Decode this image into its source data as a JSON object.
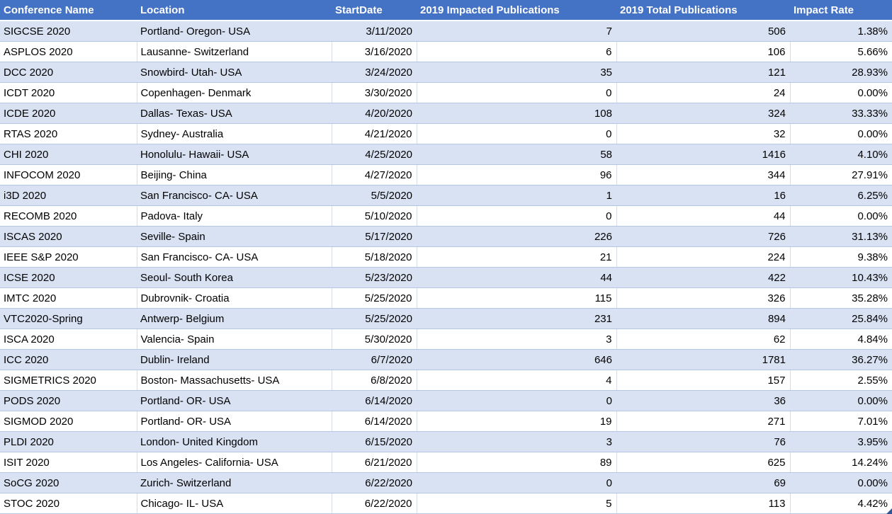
{
  "table": {
    "column_ids": [
      "conference-name",
      "location",
      "start-date",
      "impacted-publications",
      "total-publications",
      "impact-rate"
    ],
    "columns": [
      {
        "label": "Conference Name"
      },
      {
        "label": "Location"
      },
      {
        "label": "StartDate"
      },
      {
        "label": "2019 Impacted Publications"
      },
      {
        "label": "2019 Total Publications"
      },
      {
        "label": "Impact Rate"
      }
    ],
    "rows": [
      [
        "SIGCSE 2020",
        "Portland- Oregon- USA",
        "3/11/2020",
        "7",
        "506",
        "1.38%"
      ],
      [
        "ASPLOS 2020",
        "Lausanne- Switzerland",
        "3/16/2020",
        "6",
        "106",
        "5.66%"
      ],
      [
        "DCC 2020",
        "Snowbird- Utah- USA",
        "3/24/2020",
        "35",
        "121",
        "28.93%"
      ],
      [
        "ICDT 2020",
        "Copenhagen- Denmark",
        "3/30/2020",
        "0",
        "24",
        "0.00%"
      ],
      [
        "ICDE 2020",
        "Dallas- Texas- USA",
        "4/20/2020",
        "108",
        "324",
        "33.33%"
      ],
      [
        "RTAS 2020",
        "Sydney- Australia",
        "4/21/2020",
        "0",
        "32",
        "0.00%"
      ],
      [
        "CHI 2020",
        "Honolulu- Hawaii- USA",
        "4/25/2020",
        "58",
        "1416",
        "4.10%"
      ],
      [
        "INFOCOM 2020",
        "Beijing- China",
        "4/27/2020",
        "96",
        "344",
        "27.91%"
      ],
      [
        "i3D 2020",
        "San Francisco- CA- USA",
        "5/5/2020",
        "1",
        "16",
        "6.25%"
      ],
      [
        "RECOMB 2020",
        "Padova- Italy",
        "5/10/2020",
        "0",
        "44",
        "0.00%"
      ],
      [
        "ISCAS 2020",
        "Seville- Spain",
        "5/17/2020",
        "226",
        "726",
        "31.13%"
      ],
      [
        "IEEE S&P 2020",
        "San Francisco- CA- USA",
        "5/18/2020",
        "21",
        "224",
        "9.38%"
      ],
      [
        "ICSE 2020",
        "Seoul- South Korea",
        "5/23/2020",
        "44",
        "422",
        "10.43%"
      ],
      [
        "IMTC 2020",
        "Dubrovnik- Croatia",
        "5/25/2020",
        "115",
        "326",
        "35.28%"
      ],
      [
        "VTC2020-Spring",
        "Antwerp- Belgium",
        "5/25/2020",
        "231",
        "894",
        "25.84%"
      ],
      [
        "ISCA 2020",
        "Valencia- Spain",
        "5/30/2020",
        "3",
        "62",
        "4.84%"
      ],
      [
        "ICC 2020",
        "Dublin- Ireland",
        "6/7/2020",
        "646",
        "1781",
        "36.27%"
      ],
      [
        "SIGMETRICS 2020",
        "Boston- Massachusetts- USA",
        "6/8/2020",
        "4",
        "157",
        "2.55%"
      ],
      [
        "PODS 2020",
        "Portland- OR- USA",
        "6/14/2020",
        "0",
        "36",
        "0.00%"
      ],
      [
        "SIGMOD 2020",
        "Portland- OR- USA",
        "6/14/2020",
        "19",
        "271",
        "7.01%"
      ],
      [
        "PLDI 2020",
        "London- United Kingdom",
        "6/15/2020",
        "3",
        "76",
        "3.95%"
      ],
      [
        "ISIT 2020",
        "Los Angeles- California- USA",
        "6/21/2020",
        "89",
        "625",
        "14.24%"
      ],
      [
        "SoCG 2020",
        "Zurich- Switzerland",
        "6/22/2020",
        "0",
        "69",
        "0.00%"
      ],
      [
        "STOC 2020",
        "Chicago- IL- USA",
        "6/22/2020",
        "5",
        "113",
        "4.42%"
      ]
    ]
  },
  "colors": {
    "header_bg": "#4472C4",
    "header_text": "#FFFFFF",
    "band_row_bg": "#D9E2F3",
    "row_border": "#B4C6E7",
    "resize_handle": "#2E5596"
  }
}
